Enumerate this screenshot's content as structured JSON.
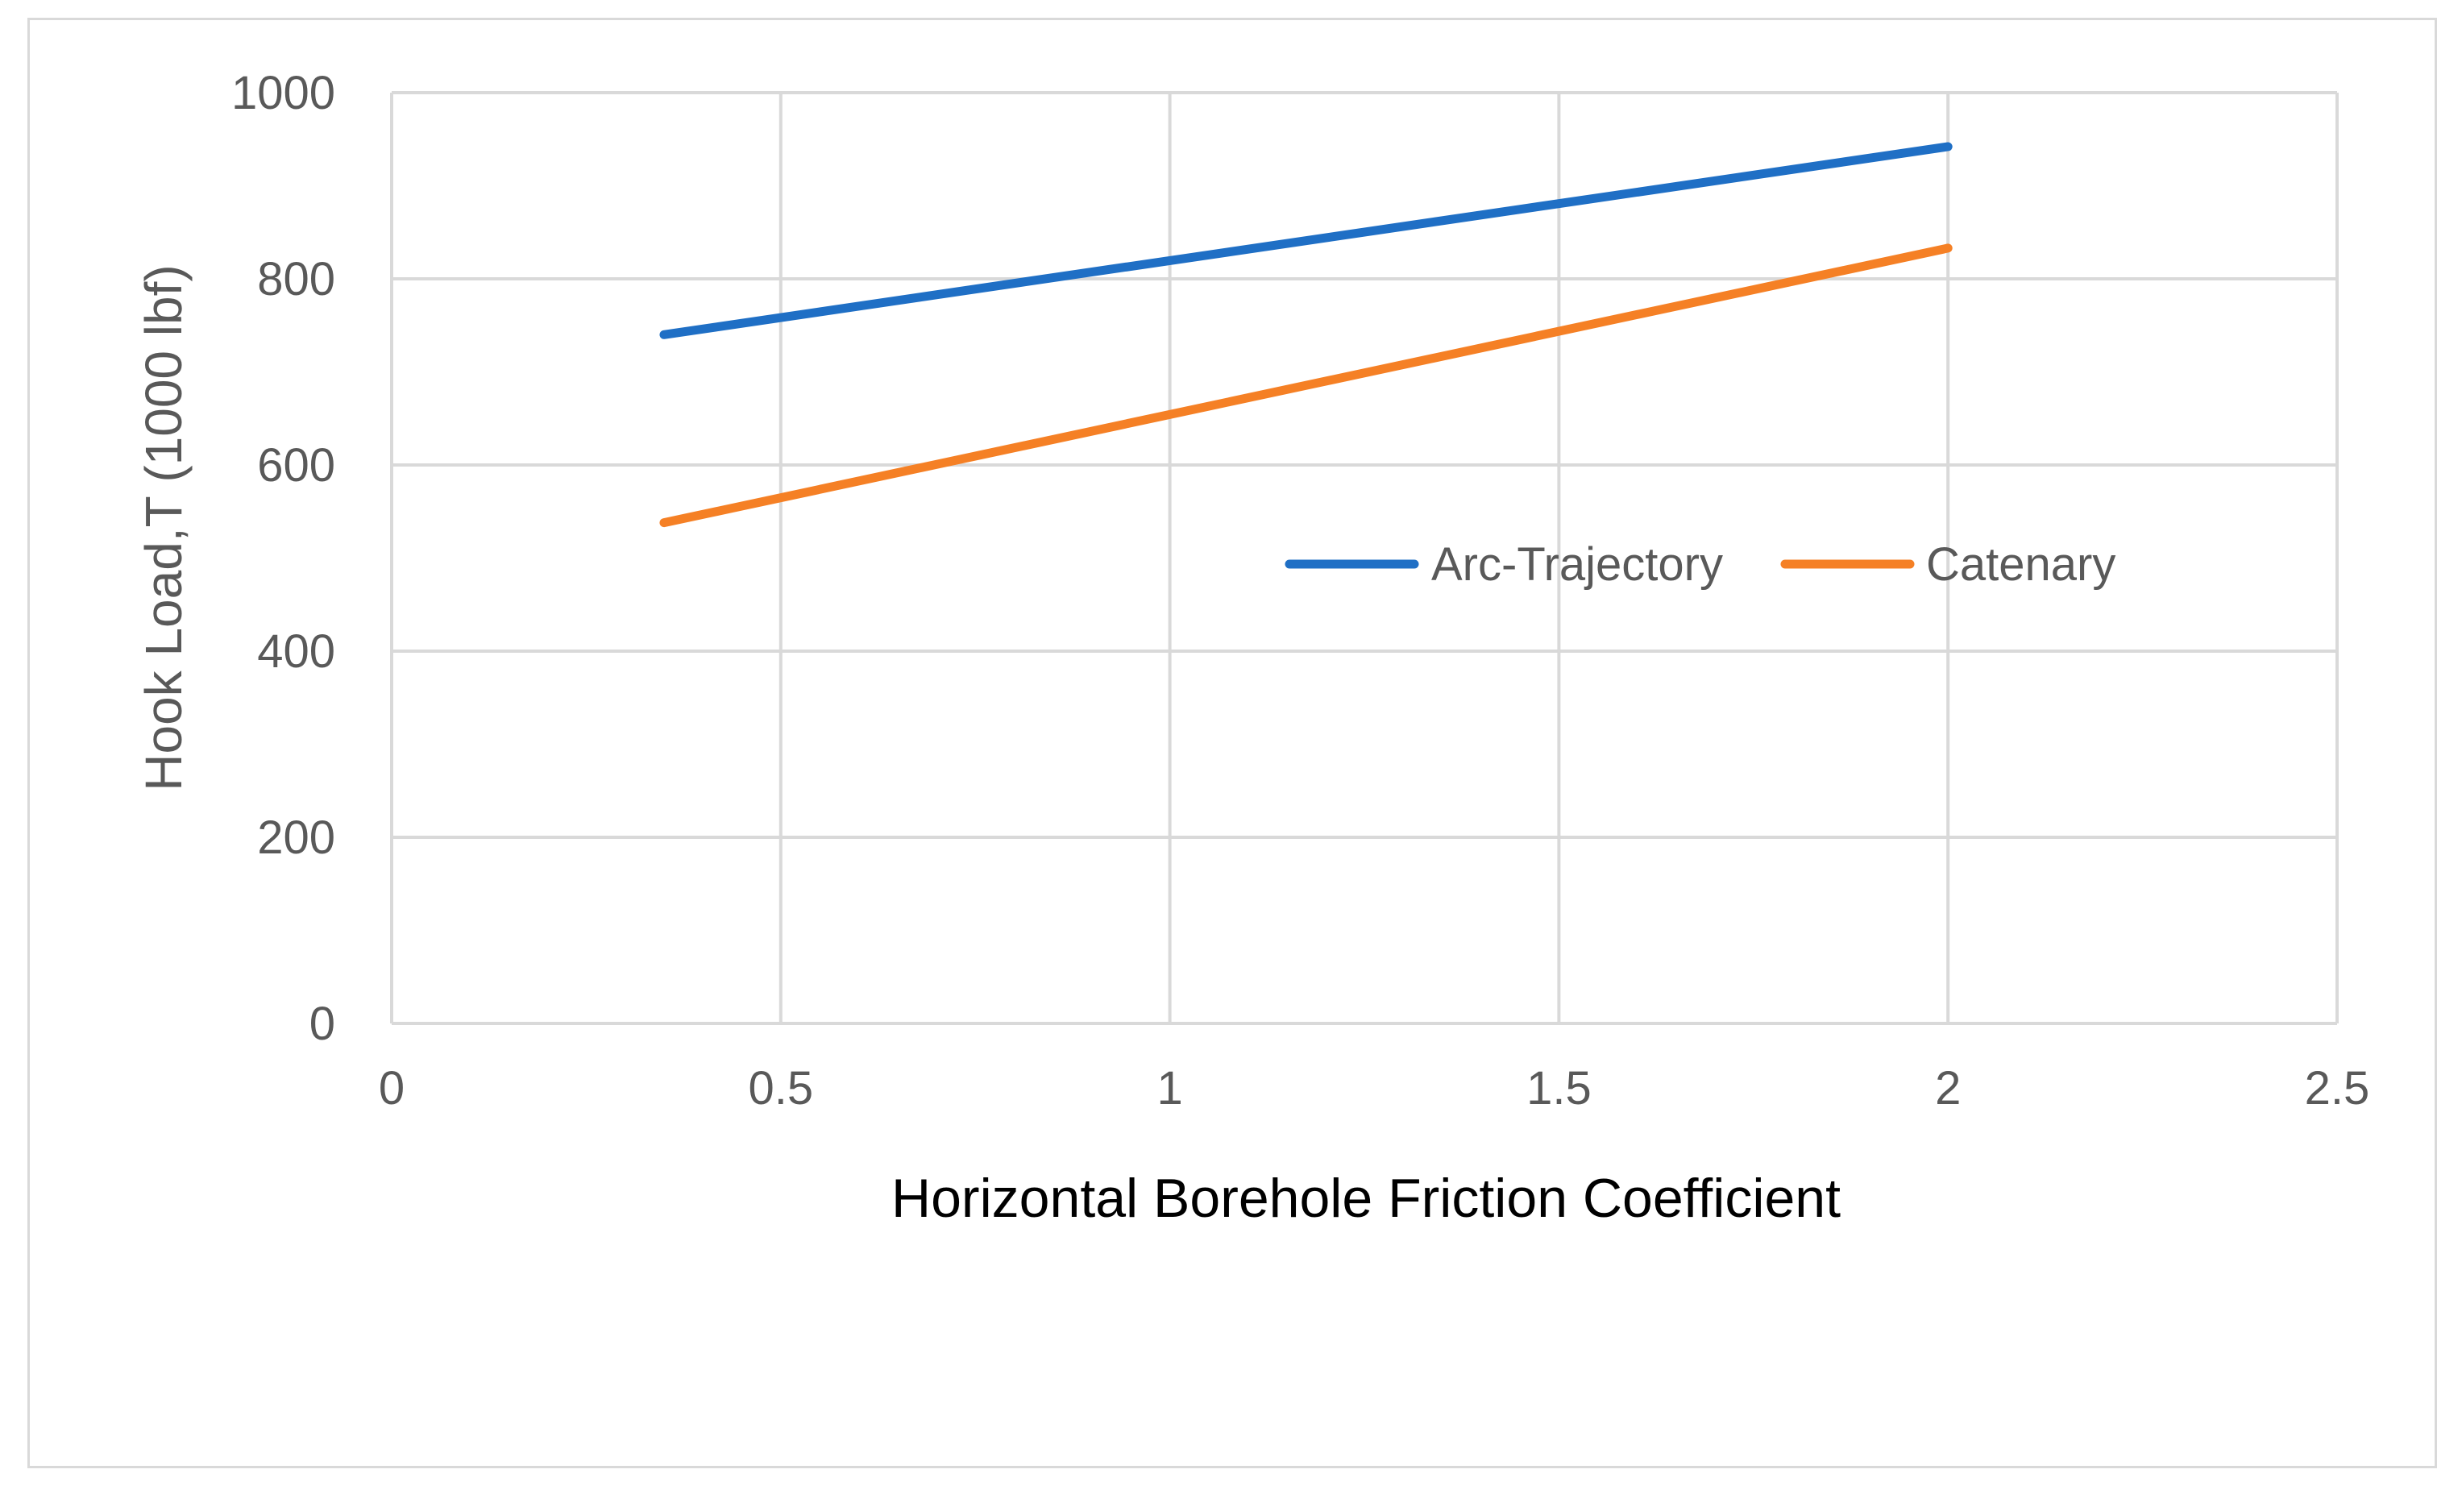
{
  "chart_data": {
    "type": "line",
    "xlabel": "Horizontal Borehole Friction Coefficient",
    "ylabel": "Hook Load,T (1000 lbf)",
    "xlim": [
      0,
      2.5
    ],
    "ylim": [
      0,
      1000
    ],
    "x_ticks": [
      "0",
      "0.5",
      "1",
      "1.5",
      "2",
      "2.5"
    ],
    "y_ticks": [
      "0",
      "200",
      "400",
      "600",
      "800",
      "1000"
    ],
    "grid": true,
    "legend_position": "center-right",
    "series": [
      {
        "name": "Arc-Trajectory",
        "color": "#1f6fc5",
        "x": [
          0.35,
          2.0
        ],
        "y": [
          740,
          942
        ]
      },
      {
        "name": "Catenary",
        "color": "#f58025",
        "x": [
          0.35,
          2.0
        ],
        "y": [
          538,
          833
        ]
      }
    ]
  }
}
